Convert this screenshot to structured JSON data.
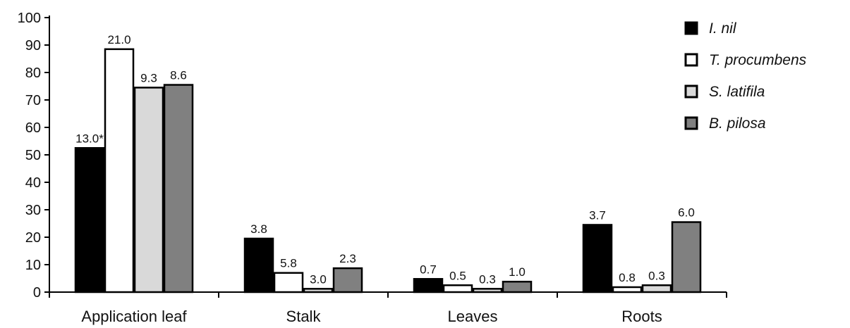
{
  "chart_data": {
    "type": "bar",
    "categories": [
      "Application leaf",
      "Stalk",
      "Leaves",
      "Roots"
    ],
    "ylim": [
      0,
      100
    ],
    "yticks": [
      0,
      10,
      20,
      30,
      40,
      50,
      60,
      70,
      80,
      90,
      100
    ],
    "xlabel": "",
    "ylabel": "",
    "legend_position": "top-right",
    "grid": false,
    "series": [
      {
        "name": "I. nil",
        "color": "#000000",
        "values": [
          52.5,
          19.5,
          4.8,
          24.5
        ],
        "labels": [
          "13.0*",
          "3.8",
          "0.7",
          "3.7"
        ]
      },
      {
        "name": "T. procumbens",
        "color": "#ffffff",
        "values": [
          88.5,
          7.0,
          2.5,
          1.8
        ],
        "labels": [
          "21.0",
          "5.8",
          "0.5",
          "0.8"
        ]
      },
      {
        "name": "S. latifila",
        "color": "#d9d9d9",
        "values": [
          74.5,
          1.2,
          1.2,
          2.5
        ],
        "labels": [
          "9.3",
          "3.0",
          "0.3",
          "0.3"
        ]
      },
      {
        "name": "B. pilosa",
        "color": "#808080",
        "values": [
          75.5,
          8.7,
          3.8,
          25.5
        ],
        "labels": [
          "8.6",
          "2.3",
          "1.0",
          "6.0"
        ]
      }
    ]
  }
}
